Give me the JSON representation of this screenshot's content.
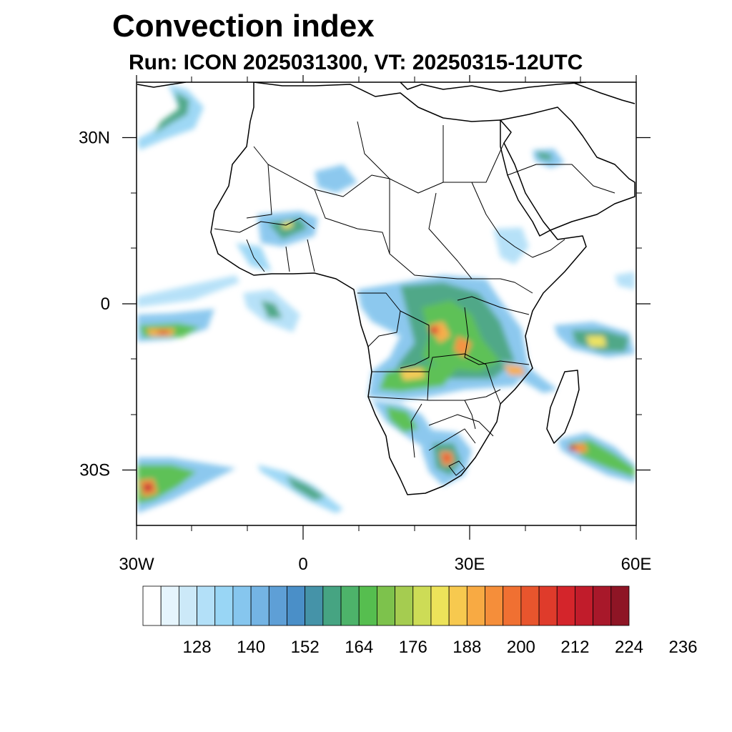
{
  "title": "Convection index",
  "subtitle": "Run: ICON 2025031300,  VT: 20250315-12UTC",
  "axes": {
    "lon_range": [
      -30,
      60
    ],
    "lat_range": [
      -40,
      40
    ],
    "x_ticks": [
      {
        "lon": -30,
        "label": "30W"
      },
      {
        "lon": 0,
        "label": "0"
      },
      {
        "lon": 30,
        "label": "30E"
      },
      {
        "lon": 60,
        "label": "60E"
      }
    ],
    "y_ticks": [
      {
        "lat": 30,
        "label": "30N"
      },
      {
        "lat": 0,
        "label": "0"
      },
      {
        "lat": -30,
        "label": "30S"
      }
    ]
  },
  "colorbar": {
    "colors": [
      "#ffffff",
      "#e6f5fd",
      "#cce9f8",
      "#b3e0f8",
      "#99d6f5",
      "#86c6ee",
      "#74b4e4",
      "#5e9fd6",
      "#4a8fc8",
      "#4593a8",
      "#46a482",
      "#4db36a",
      "#56be4f",
      "#7dc24c",
      "#a5cc50",
      "#cddc56",
      "#ede35a",
      "#f7c94f",
      "#f8aa43",
      "#f58e3a",
      "#f07032",
      "#e8552d",
      "#df3b2b",
      "#d4252b",
      "#c11c2b",
      "#a8182a",
      "#8e1525"
    ],
    "labels": [
      "128",
      "140",
      "152",
      "164",
      "176",
      "188",
      "200",
      "212",
      "224",
      "236"
    ]
  }
}
